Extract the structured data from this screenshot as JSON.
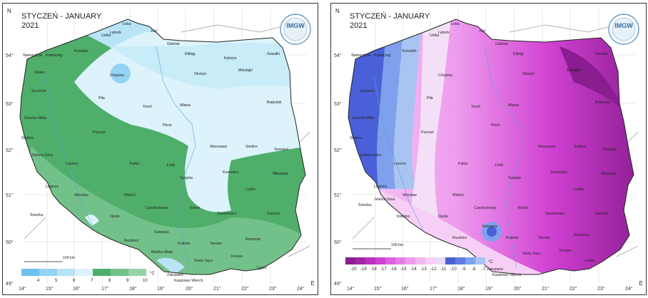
{
  "left": {
    "title_pl": "STYCZEŃ - JANUARY",
    "year": "2021",
    "north": "N",
    "east": "E",
    "logo_text": "IMGW",
    "scale_label": "100 km",
    "legend": {
      "labels": [
        "4",
        "5",
        "6",
        "7",
        "8",
        "9",
        "10",
        "°C"
      ],
      "colors": [
        "#6ec0ef",
        "#94d3f2",
        "#b8e4f6",
        "#dcf3fb",
        "#4fae6a",
        "#73c18a",
        "#96d2a4"
      ]
    }
  },
  "right": {
    "title_pl": "STYCZEŃ - JANUARY",
    "year": "2021",
    "north": "N",
    "east": "E",
    "logo_text": "IMGW",
    "scale_label": "100 km",
    "legend": {
      "labels": [
        "-20",
        "-19",
        "-18",
        "-17",
        "-16",
        "-15",
        "-14",
        "-13",
        "-12",
        "-11",
        "-10",
        "-9",
        "-8",
        "-7",
        "°C"
      ],
      "colors": [
        "#8a1d8f",
        "#a324a8",
        "#bd30bf",
        "#d040d2",
        "#de5fdf",
        "#e77ee7",
        "#ee9bee",
        "#f3b6f2",
        "#f7cff6",
        "#ecdcf6",
        "#4a60d8",
        "#5e7ee4",
        "#7fa0ec",
        "#a9c4f3"
      ]
    }
  },
  "axis": {
    "x_ticks": [
      "14°",
      "15°",
      "16°",
      "17°",
      "18°",
      "19°",
      "20°",
      "21°",
      "22°",
      "23°",
      "24°"
    ],
    "y_ticks": [
      "54°",
      "53°",
      "52°",
      "51°",
      "50°",
      "49°"
    ]
  },
  "cities": {
    "hel": "Hel",
    "leba": "Łeba",
    "lebork": "Lębork",
    "ustka": "Ustka",
    "gdansk": "Gdańsk",
    "elblag": "Elbląg",
    "ketrzyn": "Kętrzyn",
    "suwalki": "Suwałki",
    "swinoujscie": "Świnoujście",
    "kolobrzeg": "Kołobrzeg",
    "koszalin": "Koszalin",
    "resko": "Resko",
    "chojnice": "Chojnice",
    "olsztyn": "Olsztyn",
    "mikolajki": "Mikołajki",
    "szczecin": "Szczecin",
    "pila": "Piła",
    "torun": "Toruń",
    "mlawa": "Mława",
    "bialystok": "Białystok",
    "gorzow": "Gorzów Wlkp.",
    "poznan": "Poznań",
    "plock": "Płock",
    "slubice": "Słubice",
    "warszawa": "Warszawa",
    "siedlce": "Siedlce",
    "terespol": "Terespol",
    "zielona_gora": "Zielona Góra",
    "leszno": "Leszno",
    "kalisz": "Kalisz",
    "lodz": "Łódź",
    "kozienice": "Kozienice",
    "wlodawa": "Włodawa",
    "sulejow": "Sulejów",
    "legnica": "Legnica",
    "wroclaw": "Wrocław",
    "wielun": "Wieluń",
    "lublin": "Lublin",
    "jelenia_gora": "Jelenia Góra",
    "sniezka": "Śnieżka",
    "klodzko": "Kłodzko",
    "czestochowa": "Częstochowa",
    "kielce": "Kielce",
    "sandomierz": "Sandomierz",
    "zamosc": "Zamość",
    "opole": "Opole",
    "katowice": "Katowice",
    "krakow": "Kraków",
    "raciborz": "Racibórz",
    "tarnow": "Tarnów",
    "rzeszow": "Rzeszów",
    "bielsko": "Bielsko-Biała",
    "nowy_sacz": "Nowy Sącz",
    "krosno": "Krosno",
    "lesko": "Lesko",
    "zakopane": "Zakopane",
    "kasprowy": "Kasprowy Wierch",
    "elblag_r": "Elbląg"
  }
}
